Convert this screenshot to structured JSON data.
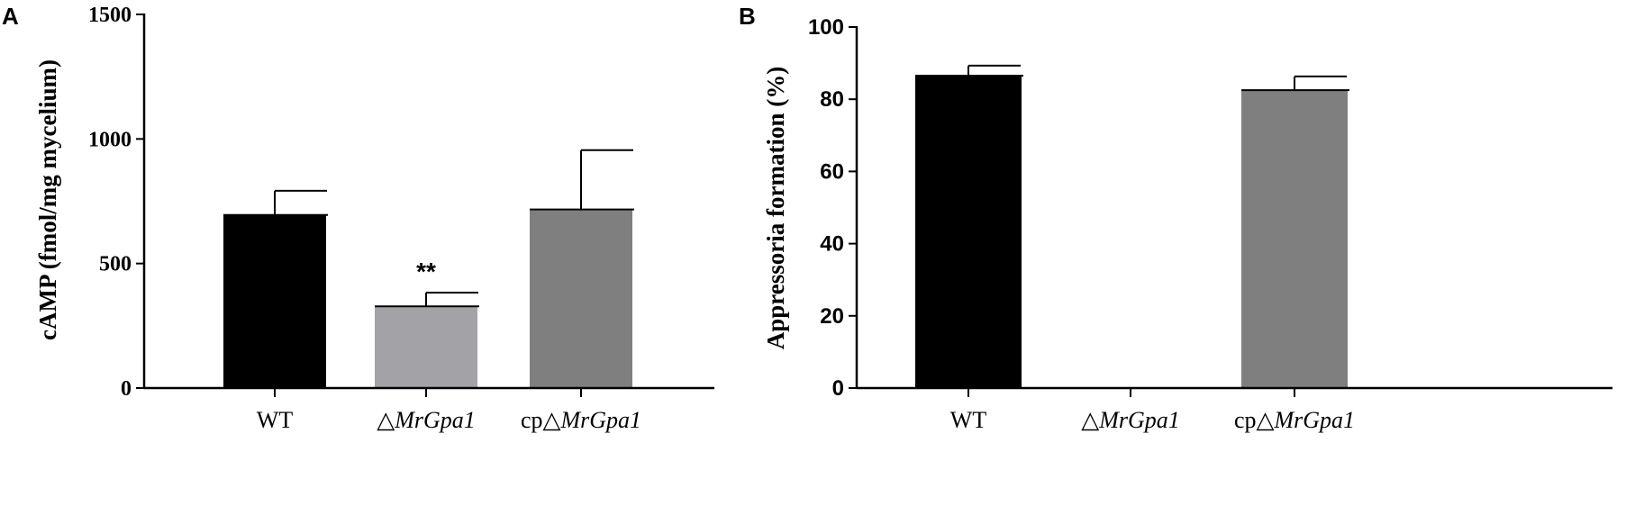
{
  "chart_data": [
    {
      "panel": "A",
      "type": "bar",
      "ylabel": "cAMP (fmol/mg mycelium)",
      "ylim": [
        0,
        1500
      ],
      "yticks": [
        "0",
        "500",
        "1000",
        "1500"
      ],
      "categories": [
        {
          "prefix": "",
          "symbol": "",
          "italic": "",
          "plain": "WT"
        },
        {
          "prefix": "",
          "symbol": "△",
          "italic": "Mr",
          "plain": "Gpa1"
        },
        {
          "prefix": "cp",
          "symbol": "△",
          "italic": "Mr",
          "plain": "Gpa1"
        }
      ],
      "values": [
        695,
        328,
        717
      ],
      "errors": [
        97,
        55,
        238
      ],
      "colors": [
        "#000000",
        "#a3a3a7",
        "#7f7f7f"
      ],
      "annotations": [
        "",
        "**",
        ""
      ]
    },
    {
      "panel": "B",
      "type": "bar",
      "ylabel": "Appressoria formation (%)",
      "ylim": [
        0,
        100
      ],
      "yticks": [
        "0",
        "20",
        "40",
        "60",
        "80",
        "100"
      ],
      "categories": [
        {
          "prefix": "",
          "symbol": "",
          "italic": "",
          "plain": "WT"
        },
        {
          "prefix": "",
          "symbol": "△",
          "italic": "Mr",
          "plain": "Gpa1"
        },
        {
          "prefix": "cp",
          "symbol": "△",
          "italic": "Mr",
          "plain": "Gpa1"
        }
      ],
      "values": [
        86.5,
        0,
        82.5
      ],
      "errors": [
        2.8,
        0,
        3.8
      ],
      "colors": [
        "#000000",
        "#a3a3a7",
        "#7f7f7f"
      ],
      "annotations": [
        "",
        "",
        ""
      ]
    }
  ]
}
